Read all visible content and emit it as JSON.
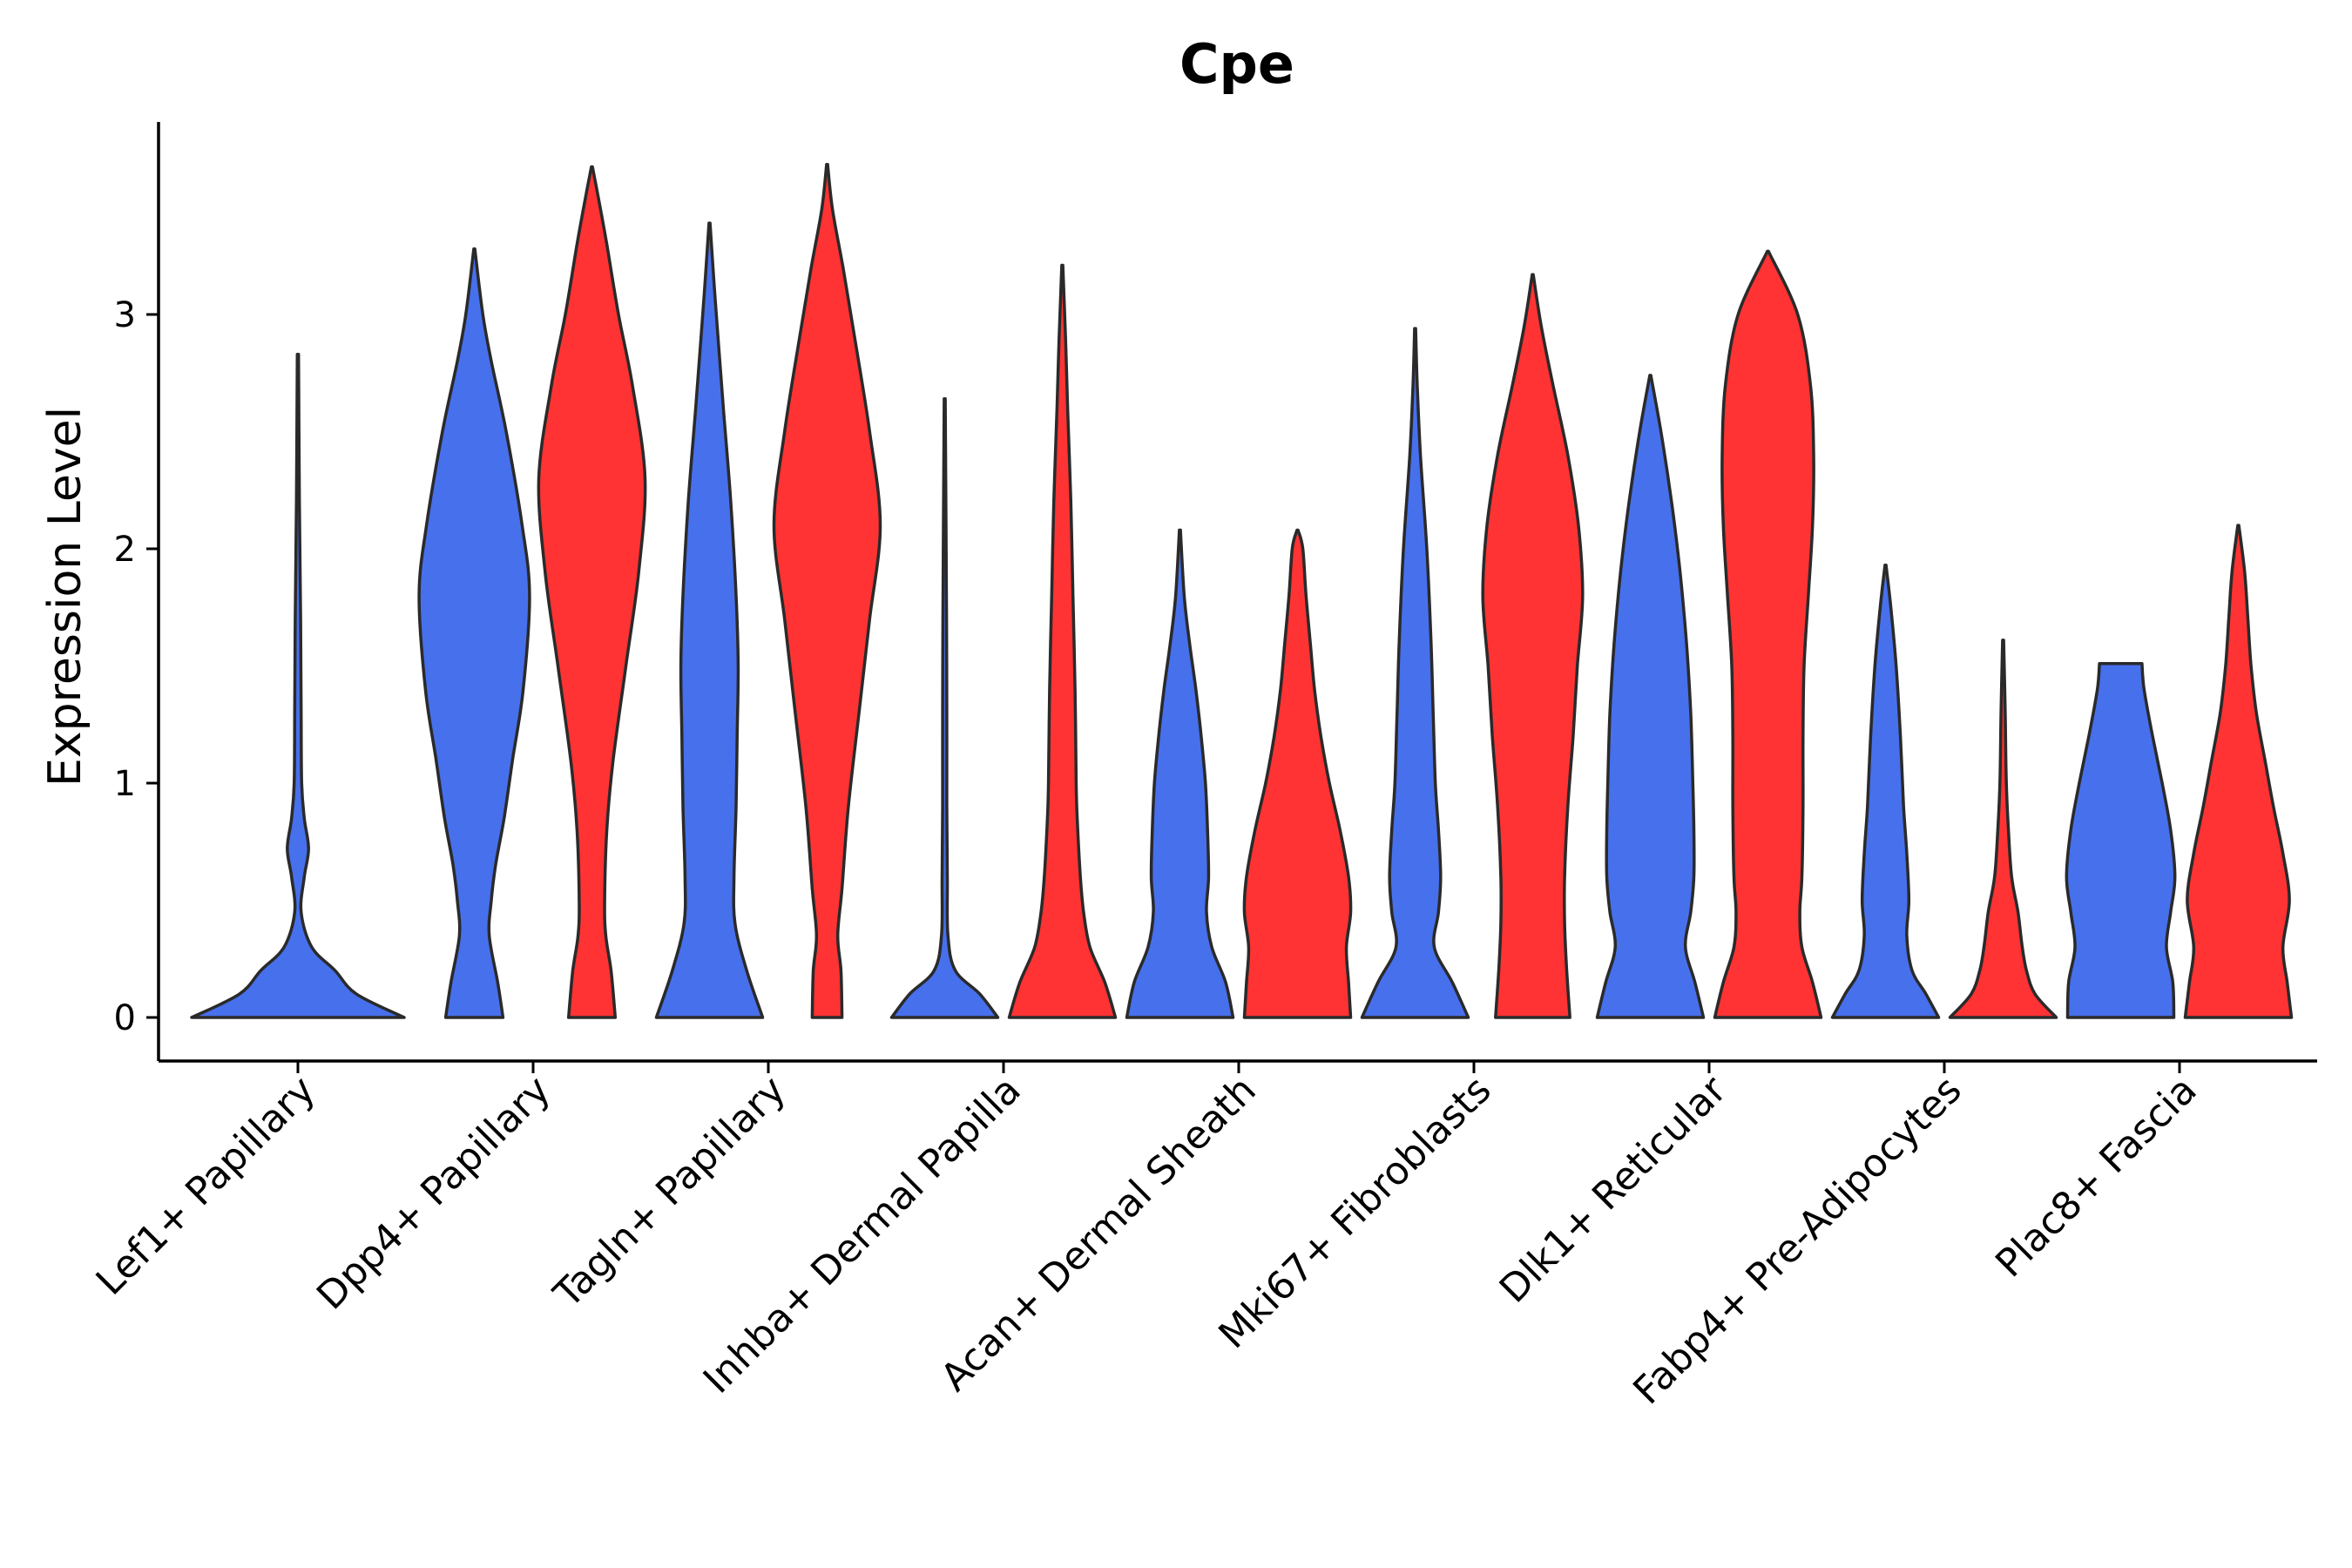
{
  "chart_data": {
    "type": "violin",
    "title": "Cpe",
    "xlabel": "",
    "ylabel": "Expression Level",
    "ylim": [
      -0.18,
      3.85
    ],
    "yticks": [
      0,
      1,
      2,
      3
    ],
    "grid": false,
    "legend": "none",
    "colors": {
      "blue": "#4770ED",
      "red": "#FF3333",
      "outline": "#2a2a2a"
    },
    "categories": [
      "Lef1+ Papillary",
      "Dpp4+ Papillary",
      "Tagln+ Papillary",
      "Inhba+ Dermal Papilla",
      "Acan+ Dermal Sheath",
      "Mki67+ Fibroblasts",
      "Dlk1+ Reticular",
      "Fabp4+ Pre-Adipocytes",
      "Plac8+ Fascia"
    ],
    "violins": [
      {
        "category": "Lef1+ Papillary",
        "group": "blue",
        "side": "center",
        "max": 2.83,
        "profile": [
          [
            0,
            1.0
          ],
          [
            0.1,
            0.55
          ],
          [
            0.2,
            0.35
          ],
          [
            0.3,
            0.13
          ],
          [
            0.45,
            0.03
          ],
          [
            0.6,
            0.06
          ],
          [
            0.72,
            0.1
          ],
          [
            0.85,
            0.06
          ],
          [
            1.0,
            0.035
          ],
          [
            1.3,
            0.03
          ],
          [
            1.7,
            0.025
          ],
          [
            2.2,
            0.014
          ],
          [
            2.83,
            0.006
          ]
        ]
      },
      {
        "category": "Dpp4+ Papillary",
        "group": "blue",
        "side": "left",
        "max": 3.28,
        "profile": [
          [
            0,
            0.27
          ],
          [
            0.15,
            0.22
          ],
          [
            0.35,
            0.14
          ],
          [
            0.5,
            0.16
          ],
          [
            0.65,
            0.2
          ],
          [
            0.85,
            0.28
          ],
          [
            1.1,
            0.36
          ],
          [
            1.4,
            0.46
          ],
          [
            1.8,
            0.52
          ],
          [
            2.1,
            0.45
          ],
          [
            2.5,
            0.3
          ],
          [
            2.8,
            0.16
          ],
          [
            3.0,
            0.08
          ],
          [
            3.28,
            0.005
          ]
        ]
      },
      {
        "category": "Dpp4+ Papillary",
        "group": "red",
        "side": "right",
        "max": 3.63,
        "profile": [
          [
            0,
            0.22
          ],
          [
            0.2,
            0.18
          ],
          [
            0.35,
            0.13
          ],
          [
            0.5,
            0.12
          ],
          [
            0.8,
            0.14
          ],
          [
            1.1,
            0.2
          ],
          [
            1.5,
            0.32
          ],
          [
            1.9,
            0.44
          ],
          [
            2.3,
            0.5
          ],
          [
            2.7,
            0.38
          ],
          [
            3.0,
            0.25
          ],
          [
            3.3,
            0.14
          ],
          [
            3.5,
            0.06
          ],
          [
            3.63,
            0.005
          ]
        ]
      },
      {
        "category": "Tagln+ Papillary",
        "group": "blue",
        "side": "left",
        "max": 3.39,
        "profile": [
          [
            0,
            0.5
          ],
          [
            0.2,
            0.35
          ],
          [
            0.4,
            0.24
          ],
          [
            0.6,
            0.23
          ],
          [
            0.9,
            0.25
          ],
          [
            1.2,
            0.26
          ],
          [
            1.5,
            0.27
          ],
          [
            1.8,
            0.25
          ],
          [
            2.2,
            0.2
          ],
          [
            2.6,
            0.13
          ],
          [
            2.9,
            0.08
          ],
          [
            3.15,
            0.04
          ],
          [
            3.39,
            0.005
          ]
        ]
      },
      {
        "category": "Tagln+ Papillary",
        "group": "red",
        "side": "right",
        "max": 3.64,
        "profile": [
          [
            0,
            0.14
          ],
          [
            0.2,
            0.13
          ],
          [
            0.35,
            0.1
          ],
          [
            0.55,
            0.14
          ],
          [
            0.9,
            0.2
          ],
          [
            1.3,
            0.3
          ],
          [
            1.7,
            0.4
          ],
          [
            2.1,
            0.5
          ],
          [
            2.5,
            0.4
          ],
          [
            2.9,
            0.26
          ],
          [
            3.2,
            0.15
          ],
          [
            3.45,
            0.05
          ],
          [
            3.64,
            0.005
          ]
        ]
      },
      {
        "category": "Inhba+ Dermal Papilla",
        "group": "blue",
        "side": "left",
        "max": 2.64,
        "profile": [
          [
            0,
            0.5
          ],
          [
            0.1,
            0.33
          ],
          [
            0.2,
            0.1
          ],
          [
            0.35,
            0.03
          ],
          [
            0.6,
            0.025
          ],
          [
            0.9,
            0.02
          ],
          [
            1.3,
            0.02
          ],
          [
            1.7,
            0.017
          ],
          [
            2.1,
            0.012
          ],
          [
            2.64,
            0.005
          ]
        ]
      },
      {
        "category": "Inhba+ Dermal Papilla",
        "group": "red",
        "side": "right",
        "max": 3.21,
        "profile": [
          [
            0,
            0.5
          ],
          [
            0.15,
            0.4
          ],
          [
            0.3,
            0.26
          ],
          [
            0.45,
            0.2
          ],
          [
            0.6,
            0.17
          ],
          [
            0.85,
            0.14
          ],
          [
            1.0,
            0.13
          ],
          [
            1.4,
            0.12
          ],
          [
            1.8,
            0.1
          ],
          [
            2.2,
            0.08
          ],
          [
            2.6,
            0.05
          ],
          [
            2.9,
            0.03
          ],
          [
            3.21,
            0.005
          ]
        ]
      },
      {
        "category": "Acan+ Dermal Sheath",
        "group": "blue",
        "side": "left",
        "max": 2.08,
        "profile": [
          [
            0,
            0.5
          ],
          [
            0.15,
            0.43
          ],
          [
            0.3,
            0.3
          ],
          [
            0.45,
            0.25
          ],
          [
            0.6,
            0.27
          ],
          [
            0.8,
            0.26
          ],
          [
            1.0,
            0.24
          ],
          [
            1.2,
            0.2
          ],
          [
            1.4,
            0.15
          ],
          [
            1.6,
            0.09
          ],
          [
            1.8,
            0.04
          ],
          [
            2.08,
            0.005
          ]
        ]
      },
      {
        "category": "Acan+ Dermal Sheath",
        "group": "red",
        "side": "right",
        "max": 2.08,
        "profile": [
          [
            0,
            0.5
          ],
          [
            0.15,
            0.48
          ],
          [
            0.3,
            0.46
          ],
          [
            0.45,
            0.5
          ],
          [
            0.6,
            0.48
          ],
          [
            0.8,
            0.4
          ],
          [
            1.0,
            0.3
          ],
          [
            1.2,
            0.22
          ],
          [
            1.4,
            0.16
          ],
          [
            1.6,
            0.12
          ],
          [
            1.8,
            0.08
          ],
          [
            2.0,
            0.05
          ],
          [
            2.08,
            0.005
          ]
        ]
      },
      {
        "category": "Mki67+ Fibroblasts",
        "group": "blue",
        "side": "left",
        "max": 2.94,
        "profile": [
          [
            0,
            0.5
          ],
          [
            0.15,
            0.35
          ],
          [
            0.3,
            0.18
          ],
          [
            0.45,
            0.22
          ],
          [
            0.6,
            0.24
          ],
          [
            0.8,
            0.22
          ],
          [
            1.0,
            0.19
          ],
          [
            1.3,
            0.17
          ],
          [
            1.6,
            0.15
          ],
          [
            2.0,
            0.11
          ],
          [
            2.4,
            0.05
          ],
          [
            2.7,
            0.02
          ],
          [
            2.94,
            0.005
          ]
        ]
      },
      {
        "category": "Mki67+ Fibroblasts",
        "group": "red",
        "side": "right",
        "max": 3.17,
        "profile": [
          [
            0,
            0.35
          ],
          [
            0.2,
            0.32
          ],
          [
            0.4,
            0.3
          ],
          [
            0.6,
            0.3
          ],
          [
            0.9,
            0.33
          ],
          [
            1.2,
            0.38
          ],
          [
            1.5,
            0.42
          ],
          [
            1.8,
            0.47
          ],
          [
            2.1,
            0.43
          ],
          [
            2.4,
            0.33
          ],
          [
            2.7,
            0.19
          ],
          [
            2.95,
            0.08
          ],
          [
            3.17,
            0.005
          ]
        ]
      },
      {
        "category": "Dlk1+ Reticular",
        "group": "blue",
        "side": "left",
        "max": 2.74,
        "profile": [
          [
            0,
            0.5
          ],
          [
            0.15,
            0.42
          ],
          [
            0.3,
            0.33
          ],
          [
            0.45,
            0.38
          ],
          [
            0.6,
            0.41
          ],
          [
            0.8,
            0.41
          ],
          [
            1.0,
            0.4
          ],
          [
            1.3,
            0.38
          ],
          [
            1.6,
            0.34
          ],
          [
            1.9,
            0.28
          ],
          [
            2.2,
            0.2
          ],
          [
            2.5,
            0.1
          ],
          [
            2.74,
            0.005
          ]
        ]
      },
      {
        "category": "Dlk1+ Reticular",
        "group": "red",
        "side": "right",
        "max": 3.27,
        "profile": [
          [
            0,
            0.5
          ],
          [
            0.15,
            0.42
          ],
          [
            0.3,
            0.32
          ],
          [
            0.45,
            0.3
          ],
          [
            0.6,
            0.32
          ],
          [
            0.9,
            0.33
          ],
          [
            1.2,
            0.33
          ],
          [
            1.5,
            0.34
          ],
          [
            1.8,
            0.38
          ],
          [
            2.1,
            0.42
          ],
          [
            2.4,
            0.43
          ],
          [
            2.7,
            0.4
          ],
          [
            3.0,
            0.28
          ],
          [
            3.27,
            0.005
          ]
        ]
      },
      {
        "category": "Fabp4+ Pre-Adipocytes",
        "group": "blue",
        "side": "left",
        "max": 1.93,
        "profile": [
          [
            0,
            0.5
          ],
          [
            0.1,
            0.38
          ],
          [
            0.2,
            0.25
          ],
          [
            0.35,
            0.2
          ],
          [
            0.5,
            0.22
          ],
          [
            0.7,
            0.2
          ],
          [
            0.9,
            0.17
          ],
          [
            1.2,
            0.14
          ],
          [
            1.5,
            0.1
          ],
          [
            1.75,
            0.05
          ],
          [
            1.93,
            0.005
          ]
        ]
      },
      {
        "category": "Fabp4+ Pre-Adipocytes",
        "group": "red",
        "side": "right",
        "max": 1.61,
        "profile": [
          [
            0,
            0.5
          ],
          [
            0.1,
            0.3
          ],
          [
            0.2,
            0.22
          ],
          [
            0.3,
            0.18
          ],
          [
            0.45,
            0.14
          ],
          [
            0.6,
            0.08
          ],
          [
            0.8,
            0.05
          ],
          [
            1.0,
            0.03
          ],
          [
            1.3,
            0.02
          ],
          [
            1.61,
            0.005
          ]
        ]
      },
      {
        "category": "Plac8+ Fascia",
        "group": "blue",
        "side": "left",
        "max": 1.51,
        "profile": [
          [
            0,
            0.5
          ],
          [
            0.15,
            0.49
          ],
          [
            0.3,
            0.43
          ],
          [
            0.45,
            0.47
          ],
          [
            0.6,
            0.51
          ],
          [
            0.8,
            0.47
          ],
          [
            1.0,
            0.39
          ],
          [
            1.2,
            0.3
          ],
          [
            1.4,
            0.22
          ],
          [
            1.51,
            0.2
          ]
        ]
      },
      {
        "category": "Plac8+ Fascia",
        "group": "red",
        "side": "right",
        "max": 2.1,
        "profile": [
          [
            0,
            0.5
          ],
          [
            0.15,
            0.46
          ],
          [
            0.3,
            0.42
          ],
          [
            0.5,
            0.48
          ],
          [
            0.7,
            0.42
          ],
          [
            0.9,
            0.33
          ],
          [
            1.1,
            0.25
          ],
          [
            1.3,
            0.17
          ],
          [
            1.5,
            0.12
          ],
          [
            1.7,
            0.09
          ],
          [
            1.9,
            0.06
          ],
          [
            2.1,
            0.005
          ]
        ]
      }
    ]
  }
}
